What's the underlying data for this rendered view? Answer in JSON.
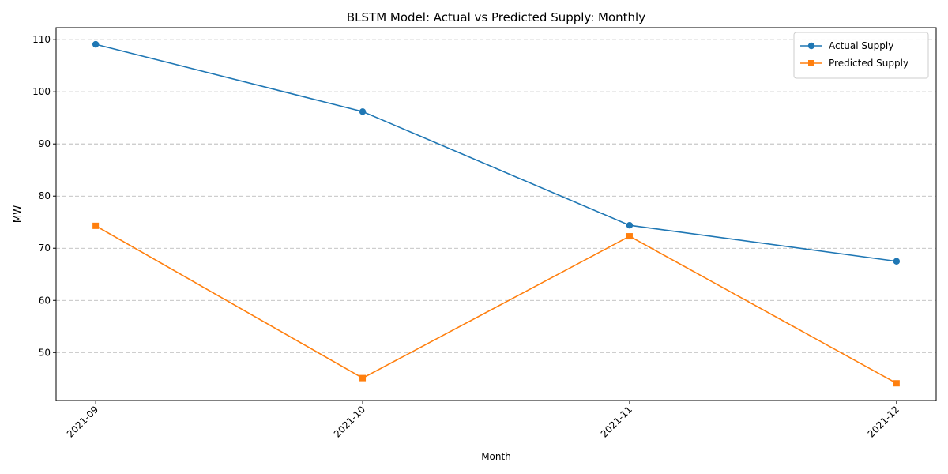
{
  "chart_data": {
    "type": "line",
    "title": "BLSTM Model: Actual vs Predicted Supply: Monthly",
    "xlabel": "Month",
    "ylabel": "MW",
    "categories": [
      "2021-09",
      "2021-10",
      "2021-11",
      "2021-12"
    ],
    "series": [
      {
        "name": "Actual Supply",
        "values": [
          109.1,
          96.2,
          74.4,
          67.5
        ],
        "color": "#1f77b4",
        "marker": "circle"
      },
      {
        "name": "Predicted Supply",
        "values": [
          74.3,
          45.1,
          72.3,
          44.1
        ],
        "color": "#ff7f0e",
        "marker": "square"
      }
    ],
    "ylim": [
      40.8,
      112.3
    ],
    "yticks": [
      50,
      60,
      70,
      80,
      90,
      100,
      110
    ],
    "grid": "y, dashed",
    "legend_position": "top-right",
    "xtick_rotation_deg": 45
  }
}
